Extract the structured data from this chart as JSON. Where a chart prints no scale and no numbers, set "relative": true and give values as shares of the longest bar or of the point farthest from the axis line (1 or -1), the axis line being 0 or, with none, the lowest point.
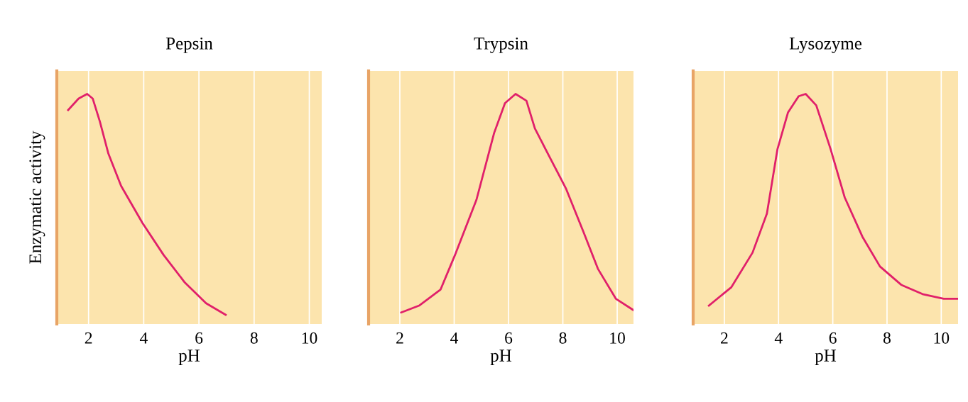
{
  "chart_data": [
    {
      "type": "line",
      "title": "Pepsin",
      "xlabel": "pH",
      "ylabel": "Enzymatic activity",
      "relative": true,
      "grid": "x",
      "tick_labels": "x",
      "color": "#e0206a",
      "xlim": [
        0.85,
        10.45
      ],
      "xticks": [
        2,
        4,
        6,
        8,
        10
      ],
      "x": [
        1.26,
        1.64,
        1.95,
        2.15,
        2.41,
        2.72,
        3.18,
        3.95,
        4.72,
        5.49,
        6.26,
        6.97
      ],
      "values": [
        0.93,
        0.98,
        1.0,
        0.98,
        0.88,
        0.74,
        0.6,
        0.44,
        0.3,
        0.18,
        0.09,
        0.04
      ]
    },
    {
      "type": "line",
      "title": "Trypsin",
      "xlabel": "pH",
      "relative": true,
      "grid": "x",
      "tick_labels": "x",
      "color": "#e0206a",
      "xlim": [
        0.85,
        10.6
      ],
      "xticks": [
        2,
        4,
        6,
        8,
        10
      ],
      "x": [
        2.05,
        2.71,
        3.5,
        4.03,
        4.82,
        5.47,
        5.87,
        6.26,
        6.66,
        6.97,
        7.45,
        8.11,
        8.76,
        9.29,
        9.95,
        10.6
      ],
      "values": [
        0.05,
        0.08,
        0.15,
        0.3,
        0.54,
        0.83,
        0.96,
        1.0,
        0.97,
        0.85,
        0.74,
        0.59,
        0.4,
        0.24,
        0.11,
        0.06
      ]
    },
    {
      "type": "line",
      "title": "Lysozyme",
      "xlabel": "pH",
      "relative": true,
      "grid": "x",
      "tick_labels": "x",
      "color": "#e0206a",
      "xlim": [
        0.85,
        10.62
      ],
      "xticks": [
        2,
        4,
        6,
        8,
        10
      ],
      "x": [
        1.43,
        2.26,
        3.04,
        3.57,
        3.96,
        4.35,
        4.74,
        5.0,
        5.39,
        5.92,
        6.44,
        7.09,
        7.74,
        8.53,
        9.31,
        10.09,
        10.62
      ],
      "values": [
        0.08,
        0.16,
        0.31,
        0.48,
        0.76,
        0.92,
        0.99,
        1.0,
        0.95,
        0.76,
        0.55,
        0.38,
        0.25,
        0.17,
        0.13,
        0.11,
        0.11
      ]
    }
  ]
}
